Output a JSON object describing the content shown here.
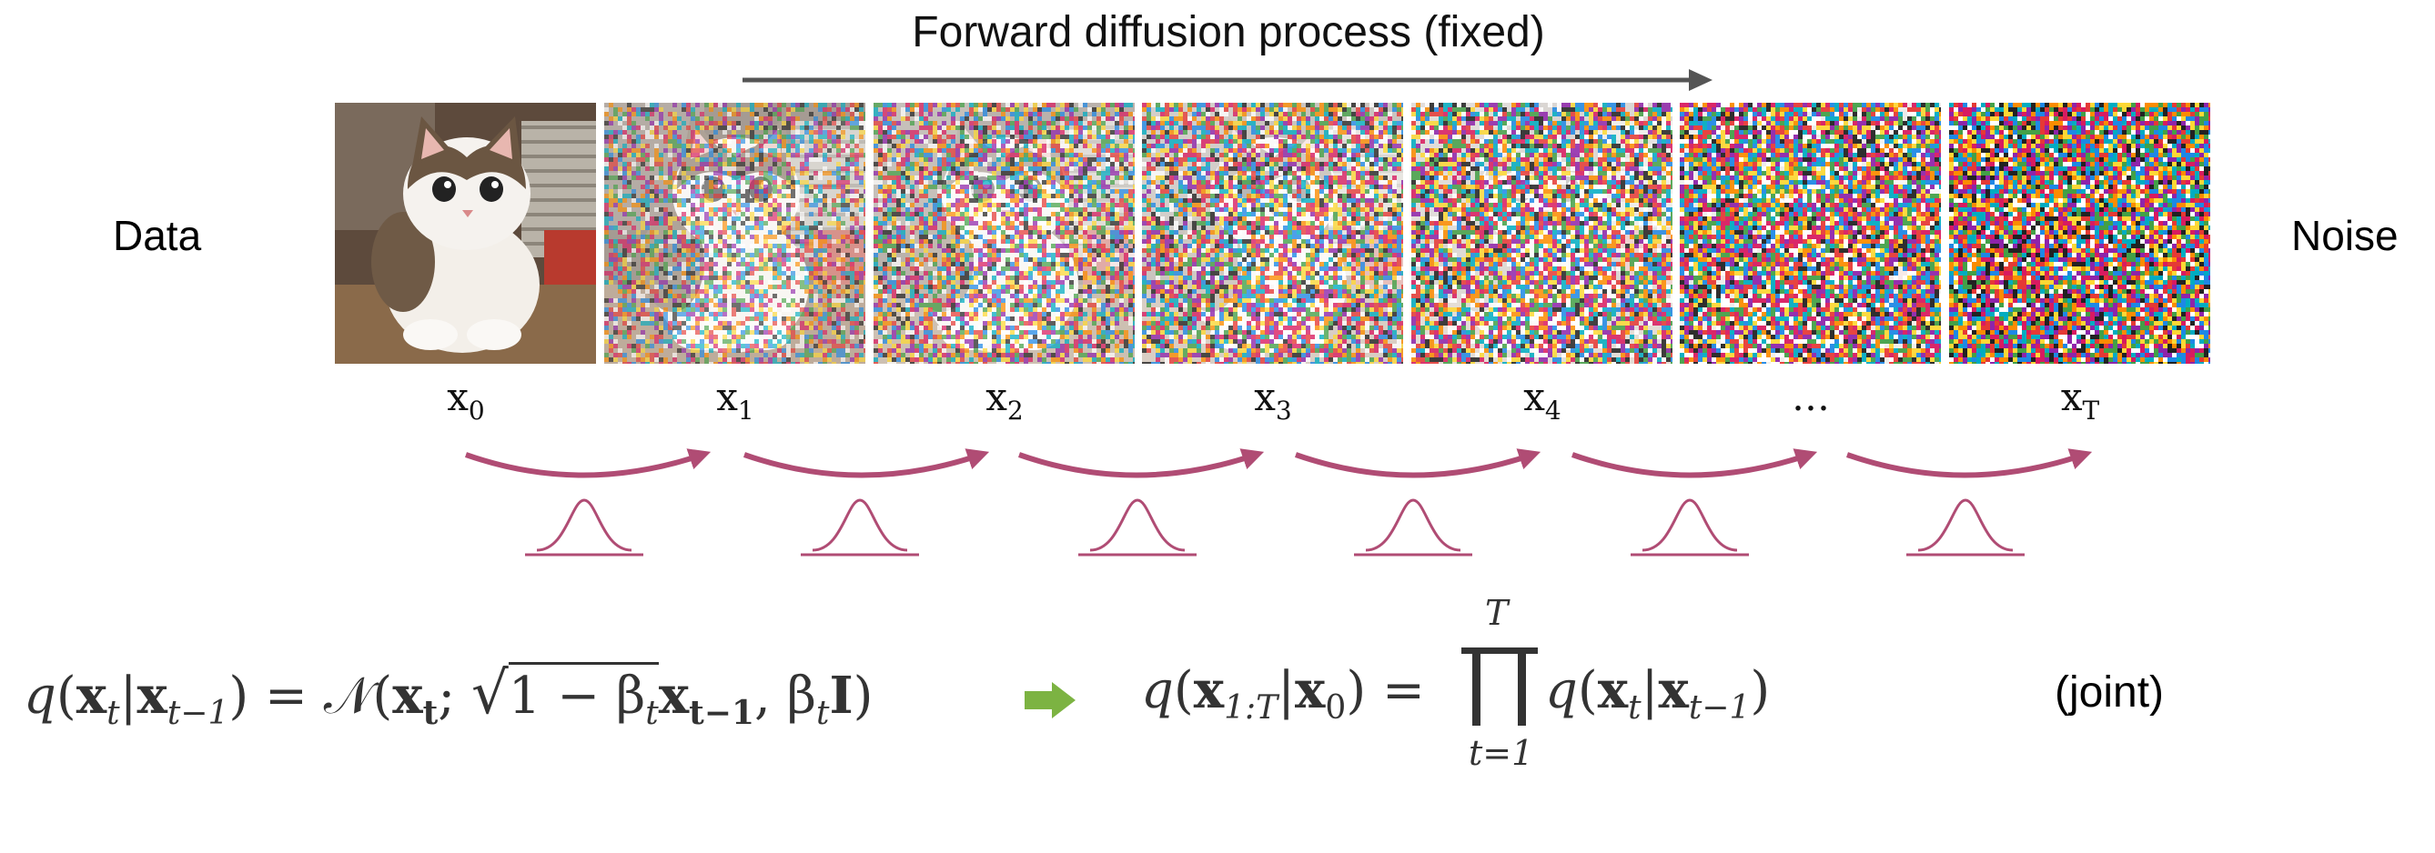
{
  "title": "Forward diffusion process (fixed)",
  "left_label": "Data",
  "right_label": "Noise",
  "steps": [
    {
      "base": "x",
      "sub": "0",
      "noise": 0.0
    },
    {
      "base": "x",
      "sub": "1",
      "noise": 0.45
    },
    {
      "base": "x",
      "sub": "2",
      "noise": 0.58
    },
    {
      "base": "x",
      "sub": "3",
      "noise": 0.68
    },
    {
      "base": "x",
      "sub": "4",
      "noise": 0.78
    },
    {
      "base": "…",
      "sub": "",
      "noise": 0.9
    },
    {
      "base": "x",
      "sub": "T",
      "noise": 1.0
    }
  ],
  "equation_step": {
    "q": "q",
    "lhs_open": "(",
    "x_t": "x",
    "t": "t",
    "bar": "|",
    "x_tm1": "x",
    "tm1": "t−1",
    "eq": ") = 𝒩(",
    "xt_bold": "x",
    "t_bold": "t",
    "semi": ";",
    "sqrt_body": "1 − β",
    "beta_sub": "t",
    "xtm1_bold": "x",
    "tm1_bold": "t−1",
    "comma": ", β",
    "beta2_sub": "t",
    "I": "I",
    "close": ")"
  },
  "equation_joint": {
    "q": "q",
    "open": "(",
    "x": "x",
    "range": "1:T",
    "bar": "|",
    "x0": "x",
    "zero": "0",
    "eq": ") =",
    "prod_top": "T",
    "prod_bottom": "t=1",
    "q2": "q",
    "open2": "(",
    "x_t": "x",
    "t": "t",
    "bar2": "|",
    "x_tm1": "x",
    "tm1": "t−1",
    "close2": ")"
  },
  "joint_label": "(joint)",
  "colors": {
    "arrow_gray": "#555555",
    "transition": "#b04c74",
    "implies_arrow": "#7cb342"
  }
}
